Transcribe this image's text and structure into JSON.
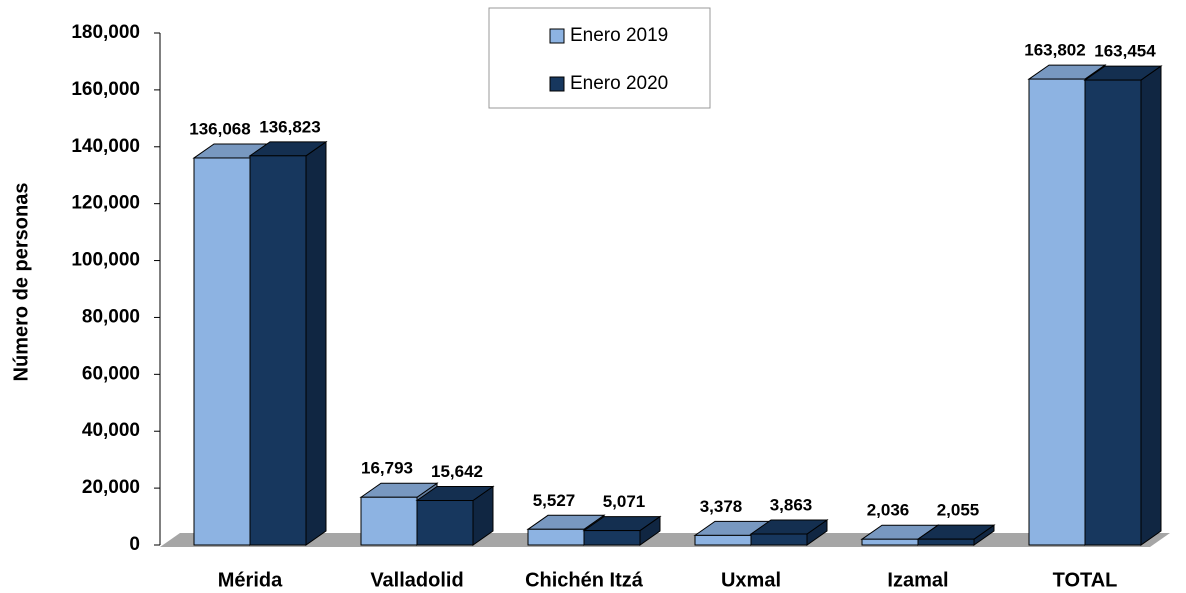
{
  "chart_data": {
    "type": "bar3d",
    "ylabel": "Número de personas",
    "categories": [
      "Mérida",
      "Valladolid",
      "Chichén Itzá",
      "Uxmal",
      "Izamal",
      "TOTAL"
    ],
    "series": [
      {
        "name": "Enero 2019",
        "color": "#8db3e2",
        "values": [
          136068,
          16793,
          5527,
          3378,
          2036,
          163802
        ],
        "value_labels": [
          "136,068",
          "16,793",
          "5,527",
          "3,378",
          "2,036",
          "163,802"
        ]
      },
      {
        "name": "Enero 2020",
        "color": "#17375e",
        "values": [
          136823,
          15642,
          5071,
          3863,
          2055,
          163454
        ],
        "value_labels": [
          "136,823",
          "15,642",
          "5,071",
          "3,863",
          "2,055",
          "163,454"
        ]
      }
    ],
    "ylim": [
      0,
      180000
    ],
    "yticks": [
      0,
      {
        "value": 20000,
        "label": "20,000"
      },
      {
        "value": 40000,
        "label": "40,000"
      },
      {
        "value": 60000,
        "label": "60,000"
      },
      {
        "value": 80000,
        "label": "80,000"
      },
      {
        "value": 100000,
        "label": "100,000"
      },
      {
        "value": 120000,
        "label": "120,000"
      },
      {
        "value": 140000,
        "label": "140,000"
      },
      {
        "value": 160000,
        "label": "160,000"
      },
      {
        "value": 180000,
        "label": "180,000"
      }
    ],
    "legend": "top"
  }
}
